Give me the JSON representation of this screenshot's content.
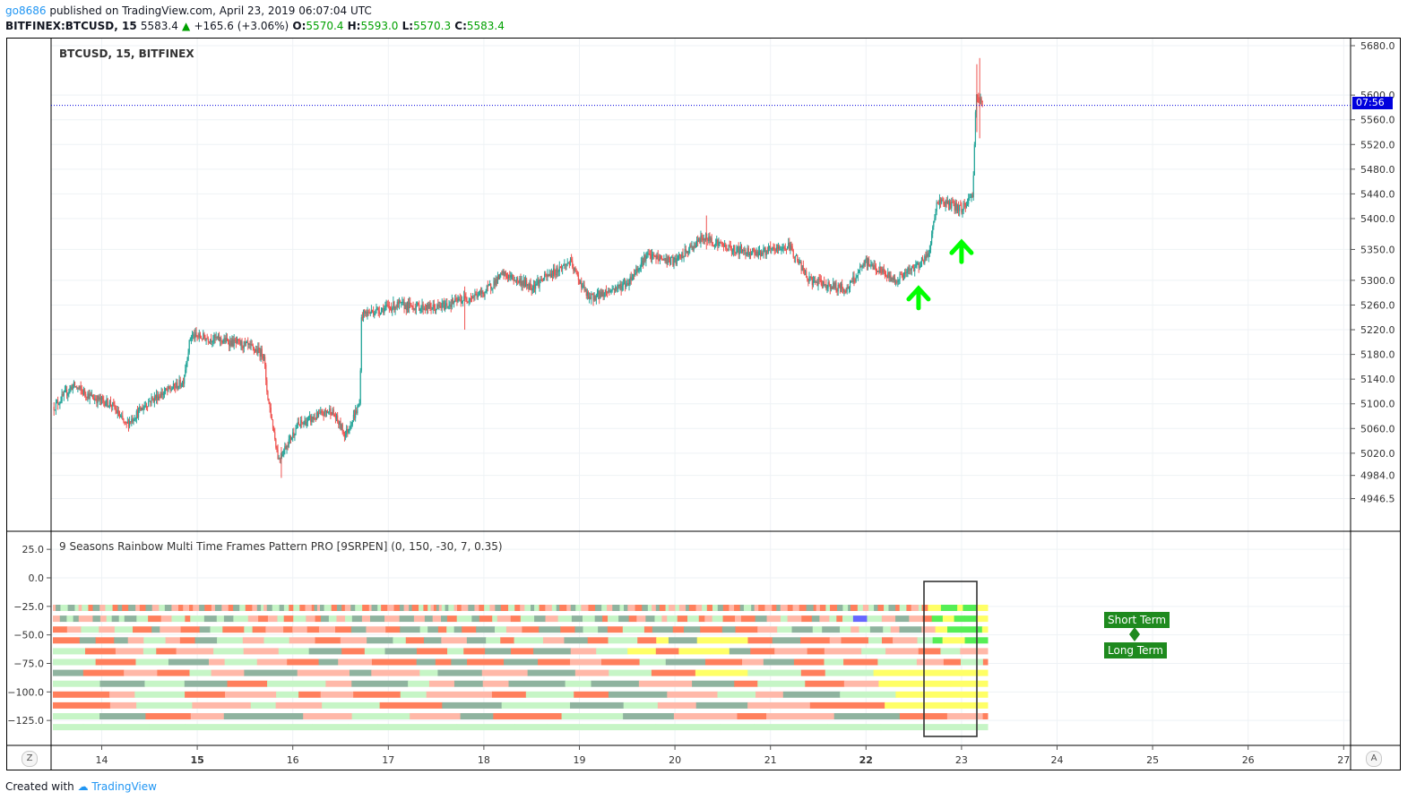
{
  "header": {
    "user": "go8686",
    "published": "published on TradingView.com, April 23, 2019 06:07:04 UTC",
    "symbol": "BITFINEX:BTCUSD, 15",
    "price": "5583.4",
    "change": "+165.6 (+3.06%)",
    "o_label": "O:",
    "o_value": "5570.4",
    "h_label": "H:",
    "h_value": "5593.0",
    "l_label": "L:",
    "l_value": "5570.3",
    "c_label": "C:",
    "c_value": "5583.4"
  },
  "main_pane": {
    "title": "BTCUSD, 15, BITFINEX",
    "price_axis": [
      "5680.0",
      "5600.0",
      "5560.0",
      "5520.0",
      "5480.0",
      "5440.0",
      "5400.0",
      "5350.0",
      "5300.0",
      "5260.0",
      "5220.0",
      "5180.0",
      "5140.0",
      "5100.0",
      "5060.0",
      "5020.0",
      "4984.0",
      "4946.5"
    ],
    "current_price_tag": "07:56"
  },
  "indicator_pane": {
    "title": "9 Seasons Rainbow Multi Time Frames Pattern PRO [9SRPEN] (0, 150, -30, 7, 0.35)",
    "axis": [
      "25.0",
      "0.0",
      "−25.0",
      "−50.0",
      "−75.0",
      "−100.0",
      "−125.0"
    ],
    "tag_short": "Short Term",
    "tag_long": "Long Term"
  },
  "time_axis": [
    "14",
    "15",
    "16",
    "17",
    "18",
    "19",
    "20",
    "21",
    "22",
    "23",
    "24",
    "25",
    "26",
    "27"
  ],
  "time_axis_bold": [
    "15",
    "22"
  ],
  "buttons": {
    "z": "Z",
    "a": "A"
  },
  "footer": {
    "created": "Created with",
    "brand": "TradingView"
  },
  "colors": {
    "up": "#26a69a",
    "down": "#ef5350",
    "arrow": "#00ff00",
    "price_line": "#0000dd",
    "heat_palette": [
      "#ff7f5c",
      "#ffb8a8",
      "#8fb39f",
      "#c6f5c6",
      "#ffff66",
      "#55ee55",
      "#6666ff"
    ]
  },
  "chart_data": {
    "type": "candlestick",
    "title": "BTCUSD, 15, BITFINEX",
    "x_ticks": [
      "14",
      "15",
      "16",
      "17",
      "18",
      "19",
      "20",
      "21",
      "22",
      "23",
      "24",
      "25",
      "26",
      "27"
    ],
    "ylim": [
      4946.5,
      5680.0
    ],
    "close_path": [
      {
        "x": 13.5,
        "y": 5095
      },
      {
        "x": 13.7,
        "y": 5130
      },
      {
        "x": 13.9,
        "y": 5110
      },
      {
        "x": 14.1,
        "y": 5100
      },
      {
        "x": 14.25,
        "y": 5065
      },
      {
        "x": 14.5,
        "y": 5105
      },
      {
        "x": 14.85,
        "y": 5135
      },
      {
        "x": 14.93,
        "y": 5210
      },
      {
        "x": 15.2,
        "y": 5205
      },
      {
        "x": 15.5,
        "y": 5195
      },
      {
        "x": 15.7,
        "y": 5180
      },
      {
        "x": 15.72,
        "y": 5130
      },
      {
        "x": 15.85,
        "y": 5010
      },
      {
        "x": 16.05,
        "y": 5065
      },
      {
        "x": 16.4,
        "y": 5090
      },
      {
        "x": 16.55,
        "y": 5050
      },
      {
        "x": 16.7,
        "y": 5100
      },
      {
        "x": 16.72,
        "y": 5245
      },
      {
        "x": 17.1,
        "y": 5260
      },
      {
        "x": 17.5,
        "y": 5255
      },
      {
        "x": 18.0,
        "y": 5280
      },
      {
        "x": 18.2,
        "y": 5310
      },
      {
        "x": 18.5,
        "y": 5290
      },
      {
        "x": 18.9,
        "y": 5330
      },
      {
        "x": 19.1,
        "y": 5270
      },
      {
        "x": 19.5,
        "y": 5295
      },
      {
        "x": 19.7,
        "y": 5340
      },
      {
        "x": 20.0,
        "y": 5330
      },
      {
        "x": 20.3,
        "y": 5370
      },
      {
        "x": 20.6,
        "y": 5350
      },
      {
        "x": 20.9,
        "y": 5345
      },
      {
        "x": 21.2,
        "y": 5355
      },
      {
        "x": 21.4,
        "y": 5300
      },
      {
        "x": 21.8,
        "y": 5285
      },
      {
        "x": 22.0,
        "y": 5330
      },
      {
        "x": 22.3,
        "y": 5300
      },
      {
        "x": 22.5,
        "y": 5320
      },
      {
        "x": 22.65,
        "y": 5340
      },
      {
        "x": 22.75,
        "y": 5430
      },
      {
        "x": 23.0,
        "y": 5415
      },
      {
        "x": 23.12,
        "y": 5440
      },
      {
        "x": 23.15,
        "y": 5600
      },
      {
        "x": 23.22,
        "y": 5583.4
      }
    ],
    "signals": [
      {
        "type": "buy-arrow",
        "x": 22.55,
        "price": 5300
      },
      {
        "type": "buy-arrow",
        "x": 23.0,
        "price": 5375
      }
    ],
    "indicator": {
      "name": "9 Seasons Rainbow Multi Time Frames Pattern PRO [9SRPEN]",
      "params": [
        0,
        150,
        -30,
        7,
        0.35
      ],
      "ylim": [
        -140,
        35
      ],
      "rows": 12
    }
  }
}
